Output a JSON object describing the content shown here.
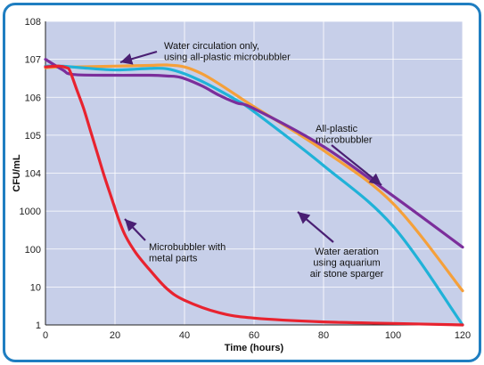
{
  "chart_data": {
    "type": "line",
    "xlabel": "Time (hours)",
    "ylabel": "CFU/mL",
    "xlim": [
      0,
      120
    ],
    "ylim": [
      0,
      8
    ],
    "log_scale_y": true,
    "grid": true,
    "x_ticks": [
      0,
      20,
      40,
      60,
      80,
      100,
      120
    ],
    "y_ticks": [
      {
        "v": 0,
        "label": "1"
      },
      {
        "v": 1,
        "label": "10"
      },
      {
        "v": 2,
        "label": "100"
      },
      {
        "v": 3,
        "label": "1000"
      },
      {
        "v": 4,
        "label": "104"
      },
      {
        "v": 5,
        "label": "105"
      },
      {
        "v": 6,
        "label": "106"
      },
      {
        "v": 7,
        "label": "107"
      },
      {
        "v": 8,
        "label": "108"
      }
    ],
    "series": [
      {
        "color": "#f5a03a",
        "x": [
          0,
          5,
          10,
          20,
          30,
          35,
          40,
          45,
          50,
          55,
          60,
          80,
          100,
          120
        ],
        "y": [
          6.78,
          6.8,
          6.8,
          6.82,
          6.84,
          6.85,
          6.8,
          6.62,
          6.35,
          6.05,
          5.75,
          4.6,
          3.2,
          0.9
        ]
      },
      {
        "color": "#20b2d8",
        "x": [
          0,
          5,
          10,
          20,
          30,
          35,
          40,
          45,
          50,
          55,
          60,
          80,
          100,
          120
        ],
        "y": [
          6.82,
          6.82,
          6.78,
          6.72,
          6.76,
          6.75,
          6.62,
          6.42,
          6.18,
          5.92,
          5.62,
          4.2,
          2.6,
          0.0
        ]
      },
      {
        "color": "#7b2e9b",
        "x": [
          0,
          5,
          8,
          20,
          30,
          35,
          39,
          45,
          50,
          55,
          60,
          80,
          100,
          120
        ],
        "y": [
          7.0,
          6.72,
          6.6,
          6.58,
          6.58,
          6.56,
          6.52,
          6.3,
          6.05,
          5.85,
          5.7,
          4.7,
          3.4,
          2.05
        ]
      },
      {
        "color": "#e8232f",
        "x": [
          0,
          4,
          6,
          7,
          9,
          11,
          13,
          15,
          17,
          19,
          21,
          23,
          26,
          30,
          35,
          40,
          50,
          60,
          80,
          100,
          120
        ],
        "y": [
          6.8,
          6.82,
          6.78,
          6.7,
          6.2,
          5.7,
          5.1,
          4.5,
          3.9,
          3.35,
          2.8,
          2.35,
          1.9,
          1.45,
          0.95,
          0.65,
          0.32,
          0.18,
          0.08,
          0.04,
          0.0
        ]
      }
    ],
    "annotations": [
      {
        "id": "water-circ",
        "lines": [
          "Water circulation only,",
          "using all-plastic microbubbler"
        ]
      },
      {
        "id": "all-plastic",
        "lines": [
          "All-plastic",
          "microbubbler"
        ]
      },
      {
        "id": "aeration",
        "lines": [
          "Water aeration",
          "using aquarium",
          "air stone sparger"
        ]
      },
      {
        "id": "metal",
        "lines": [
          "Microbubbler with",
          "metal parts"
        ]
      }
    ]
  }
}
